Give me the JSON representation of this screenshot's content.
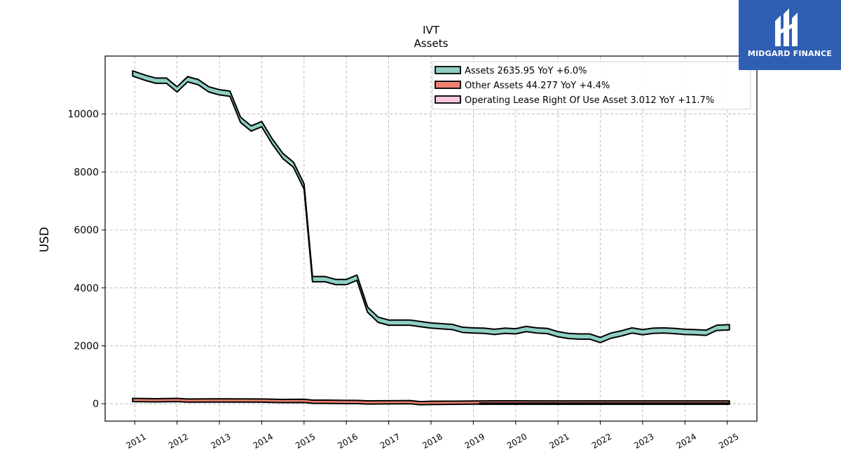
{
  "chart_data": {
    "type": "area",
    "title": "IVT",
    "subtitle": "Assets",
    "ylabel": "USD",
    "ylim": [
      -600,
      12000
    ],
    "xlim": [
      2010.3,
      2025.7
    ],
    "yticks": [
      0,
      2000,
      4000,
      6000,
      8000,
      10000
    ],
    "xticks": [
      "2011",
      "2012",
      "2013",
      "2014",
      "2015",
      "2016",
      "2017",
      "2018",
      "2019",
      "2020",
      "2021",
      "2022",
      "2023",
      "2024",
      "2025"
    ],
    "grid": true,
    "legend_position": "top-right",
    "series": [
      {
        "name": "Assets",
        "legend": "Assets  2635.95 YoY +6.0%",
        "color": "#8ecfc3",
        "points": [
          [
            2010.95,
            11400
          ],
          [
            2011.25,
            11250
          ],
          [
            2011.5,
            11150
          ],
          [
            2011.75,
            11150
          ],
          [
            2012.0,
            10850
          ],
          [
            2012.25,
            11200
          ],
          [
            2012.5,
            11100
          ],
          [
            2012.75,
            10850
          ],
          [
            2013.0,
            10750
          ],
          [
            2013.25,
            10700
          ],
          [
            2013.5,
            9800
          ],
          [
            2013.75,
            9500
          ],
          [
            2014.0,
            9650
          ],
          [
            2014.25,
            9050
          ],
          [
            2014.5,
            8550
          ],
          [
            2014.75,
            8250
          ],
          [
            2015.0,
            7500
          ],
          [
            2015.2,
            4300
          ],
          [
            2015.5,
            4300
          ],
          [
            2015.75,
            4200
          ],
          [
            2016.0,
            4200
          ],
          [
            2016.25,
            4350
          ],
          [
            2016.5,
            3250
          ],
          [
            2016.75,
            2900
          ],
          [
            2017.0,
            2800
          ],
          [
            2017.5,
            2800
          ],
          [
            2017.75,
            2750
          ],
          [
            2018.0,
            2700
          ],
          [
            2018.5,
            2650
          ],
          [
            2018.75,
            2550
          ],
          [
            2019.0,
            2530
          ],
          [
            2019.25,
            2520
          ],
          [
            2019.5,
            2480
          ],
          [
            2019.75,
            2520
          ],
          [
            2020.0,
            2500
          ],
          [
            2020.25,
            2580
          ],
          [
            2020.5,
            2530
          ],
          [
            2020.75,
            2510
          ],
          [
            2021.0,
            2400
          ],
          [
            2021.25,
            2340
          ],
          [
            2021.5,
            2320
          ],
          [
            2021.75,
            2320
          ],
          [
            2022.0,
            2200
          ],
          [
            2022.25,
            2350
          ],
          [
            2022.5,
            2430
          ],
          [
            2022.75,
            2530
          ],
          [
            2023.0,
            2470
          ],
          [
            2023.25,
            2520
          ],
          [
            2023.5,
            2530
          ],
          [
            2023.75,
            2510
          ],
          [
            2024.0,
            2480
          ],
          [
            2024.25,
            2470
          ],
          [
            2024.5,
            2450
          ],
          [
            2024.75,
            2620
          ],
          [
            2025.05,
            2640
          ]
        ]
      },
      {
        "name": "Other Assets",
        "legend": "Other Assets  44.277 YoY +4.4%",
        "color": "#f08070",
        "points": [
          [
            2010.95,
            130
          ],
          [
            2011.5,
            120
          ],
          [
            2012.0,
            130
          ],
          [
            2012.25,
            110
          ],
          [
            2013.0,
            115
          ],
          [
            2014.0,
            110
          ],
          [
            2014.5,
            95
          ],
          [
            2015.0,
            100
          ],
          [
            2015.2,
            70
          ],
          [
            2015.5,
            70
          ],
          [
            2016.0,
            60
          ],
          [
            2016.25,
            60
          ],
          [
            2016.5,
            45
          ],
          [
            2017.0,
            50
          ],
          [
            2017.5,
            55
          ],
          [
            2017.75,
            20
          ],
          [
            2018.0,
            30
          ],
          [
            2018.5,
            35
          ],
          [
            2019.0,
            40
          ],
          [
            2019.5,
            45
          ],
          [
            2020.0,
            45
          ],
          [
            2021.0,
            42
          ],
          [
            2022.0,
            44
          ],
          [
            2023.0,
            43
          ],
          [
            2024.0,
            44
          ],
          [
            2025.05,
            44
          ]
        ]
      },
      {
        "name": "Operating Lease Right Of Use Asset",
        "legend": "Operating Lease Right Of Use Asset  3.012 YoY +11.7%",
        "color": "#f9c9e0",
        "points": [
          [
            2019.15,
            3
          ],
          [
            2025.05,
            3
          ]
        ]
      }
    ]
  },
  "logo": {
    "text": "MIDGARD FINANCE",
    "color": "#2f5fb3"
  }
}
